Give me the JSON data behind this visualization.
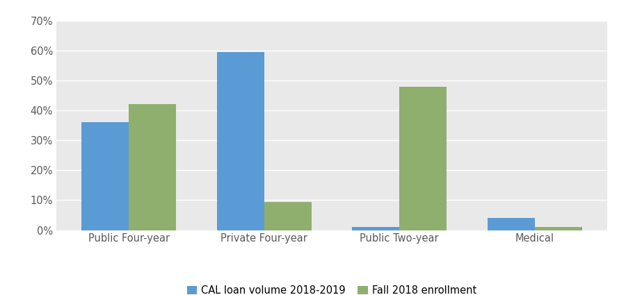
{
  "categories": [
    "Public Four-year",
    "Private Four-year",
    "Public Two-year",
    "Medical"
  ],
  "cal_loan_volume": [
    0.36,
    0.595,
    0.01,
    0.04
  ],
  "fall_enrollment": [
    0.42,
    0.095,
    0.48,
    0.01
  ],
  "cal_color": "#5B9BD5",
  "enroll_color": "#8FAF6E",
  "legend_labels": [
    "CAL loan volume 2018-2019",
    "Fall 2018 enrollment"
  ],
  "ylim": [
    0,
    0.7
  ],
  "yticks": [
    0.0,
    0.1,
    0.2,
    0.3,
    0.4,
    0.5,
    0.6,
    0.7
  ],
  "bar_width": 0.35,
  "background_color": "#FFFFFF",
  "plot_bg_color": "#E9E9E9",
  "grid_color": "#FFFFFF",
  "tick_label_color": "#595959",
  "figsize": [
    9.0,
    4.25
  ],
  "dpi": 100
}
